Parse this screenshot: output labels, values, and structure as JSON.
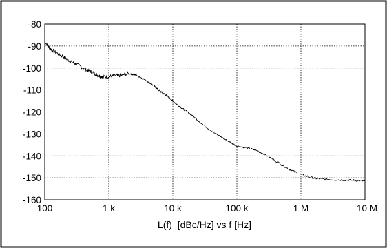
{
  "colors": {
    "background": "#ffffff",
    "line": "#000000",
    "grid": "#000000",
    "frame": "#000000"
  },
  "chart_data": {
    "type": "line",
    "title": "",
    "xlabel": "L(f)  [dBc/Hz] vs f [Hz]",
    "ylabel": "",
    "x_scale": "log",
    "xlim": [
      100,
      10000000
    ],
    "ylim": [
      -160,
      -80
    ],
    "grid": true,
    "grid_style": "dotted",
    "legend": "none",
    "x_ticks": [
      {
        "value": 100,
        "label": "100"
      },
      {
        "value": 1000,
        "label": "1 k"
      },
      {
        "value": 10000,
        "label": "10 k"
      },
      {
        "value": 100000,
        "label": "100 k"
      },
      {
        "value": 1000000,
        "label": "1 M"
      },
      {
        "value": 10000000,
        "label": "10 M"
      }
    ],
    "y_ticks": [
      {
        "value": -80,
        "label": "-80"
      },
      {
        "value": -90,
        "label": "-90"
      },
      {
        "value": -100,
        "label": "-100"
      },
      {
        "value": -110,
        "label": "-110"
      },
      {
        "value": -120,
        "label": "-120"
      },
      {
        "value": -130,
        "label": "-130"
      },
      {
        "value": -140,
        "label": "-140"
      },
      {
        "value": -150,
        "label": "-150"
      },
      {
        "value": -160,
        "label": "-160"
      }
    ],
    "series": [
      {
        "x": [
          100,
          120,
          150,
          200,
          250,
          300,
          400,
          500,
          600,
          700,
          800,
          1000,
          1200,
          1500,
          2000,
          2500,
          3000,
          4000,
          5000,
          6000,
          7000,
          8000,
          10000,
          12000,
          15000,
          20000,
          30000,
          50000,
          70000,
          100000,
          150000,
          200000,
          300000,
          500000,
          700000,
          1000000,
          1500000,
          2000000,
          3000000,
          5000000,
          7000000,
          10000000
        ],
        "y": [
          -88,
          -91,
          -93,
          -95,
          -97,
          -98,
          -100,
          -101.5,
          -102.5,
          -103.5,
          -104,
          -104,
          -103.5,
          -103.5,
          -102.5,
          -103,
          -104,
          -106,
          -108,
          -110,
          -111.5,
          -112.5,
          -115,
          -117,
          -119,
          -121.5,
          -126,
          -130.5,
          -133,
          -135.5,
          -136.5,
          -137.5,
          -140,
          -144,
          -146.5,
          -148.5,
          -150,
          -150.5,
          -150.8,
          -151,
          -151.2,
          -151.5
        ]
      }
    ]
  }
}
